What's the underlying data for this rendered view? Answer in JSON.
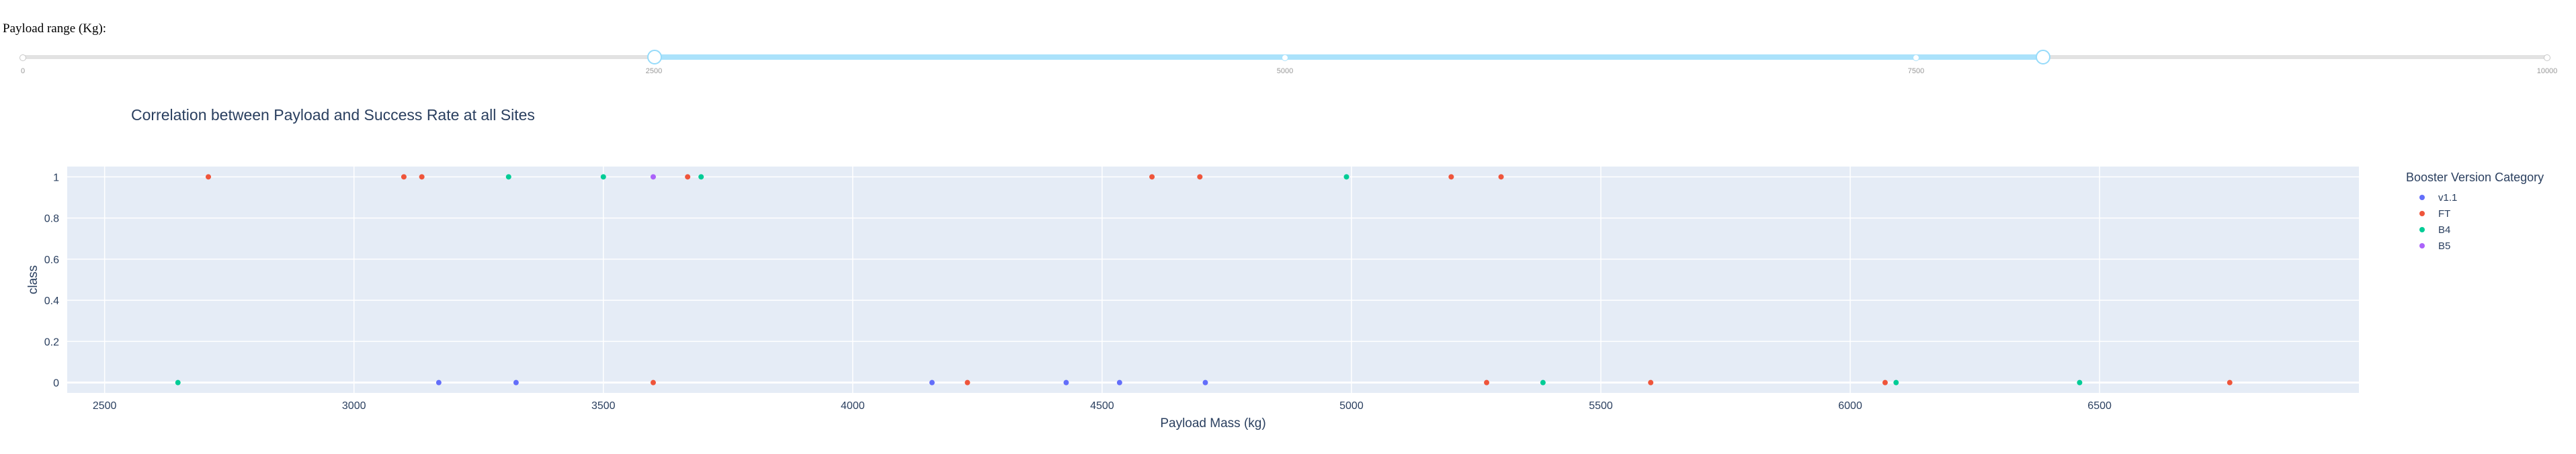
{
  "slider": {
    "label": "Payload range (Kg):",
    "min": 0,
    "max": 10000,
    "value": [
      2500,
      8000
    ],
    "marks": [
      0,
      2500,
      5000,
      7500,
      10000
    ],
    "colors": {
      "track": "#abe2fb",
      "rail": "#e2e2e2",
      "handle_border": "#96dbfa"
    }
  },
  "chart_data": {
    "type": "scatter",
    "title": "Correlation between Payload and Success Rate at all Sites",
    "xlabel": "Payload Mass (kg)",
    "ylabel": "class",
    "xlim": [
      2425,
      7020
    ],
    "ylim": [
      -0.05,
      1.05
    ],
    "x_ticks": [
      2500,
      3000,
      3500,
      4000,
      4500,
      5000,
      5500,
      6000,
      6500
    ],
    "y_ticks": [
      0,
      0.2,
      0.4,
      0.6,
      0.8,
      1
    ],
    "grid": true,
    "legend": {
      "title": "Booster Version Category",
      "placement": "right"
    },
    "series": [
      {
        "name": "v1.1",
        "color": "#636efa",
        "points": [
          [
            3170,
            0
          ],
          [
            3325,
            0
          ],
          [
            4159,
            0
          ],
          [
            4428,
            0
          ],
          [
            4535,
            0
          ],
          [
            4707,
            0
          ]
        ]
      },
      {
        "name": "FT",
        "color": "#ef553b",
        "points": [
          [
            2708,
            1
          ],
          [
            3100,
            1
          ],
          [
            3136,
            1
          ],
          [
            3669,
            1
          ],
          [
            4600,
            1
          ],
          [
            4696,
            1
          ],
          [
            5200,
            1
          ],
          [
            5300,
            1
          ],
          [
            3600,
            0
          ],
          [
            4230,
            0
          ],
          [
            5271,
            0
          ],
          [
            5600,
            0
          ],
          [
            6070,
            0
          ],
          [
            6761,
            0
          ]
        ]
      },
      {
        "name": "B4",
        "color": "#00cc96",
        "points": [
          [
            3310,
            1
          ],
          [
            3500,
            1
          ],
          [
            3696,
            1
          ],
          [
            4990,
            1
          ],
          [
            2647,
            0
          ],
          [
            5384,
            0
          ],
          [
            6092,
            0
          ],
          [
            6460,
            0
          ]
        ]
      },
      {
        "name": "B5",
        "color": "#ab63fa",
        "points": [
          [
            3600,
            1
          ]
        ]
      }
    ]
  }
}
